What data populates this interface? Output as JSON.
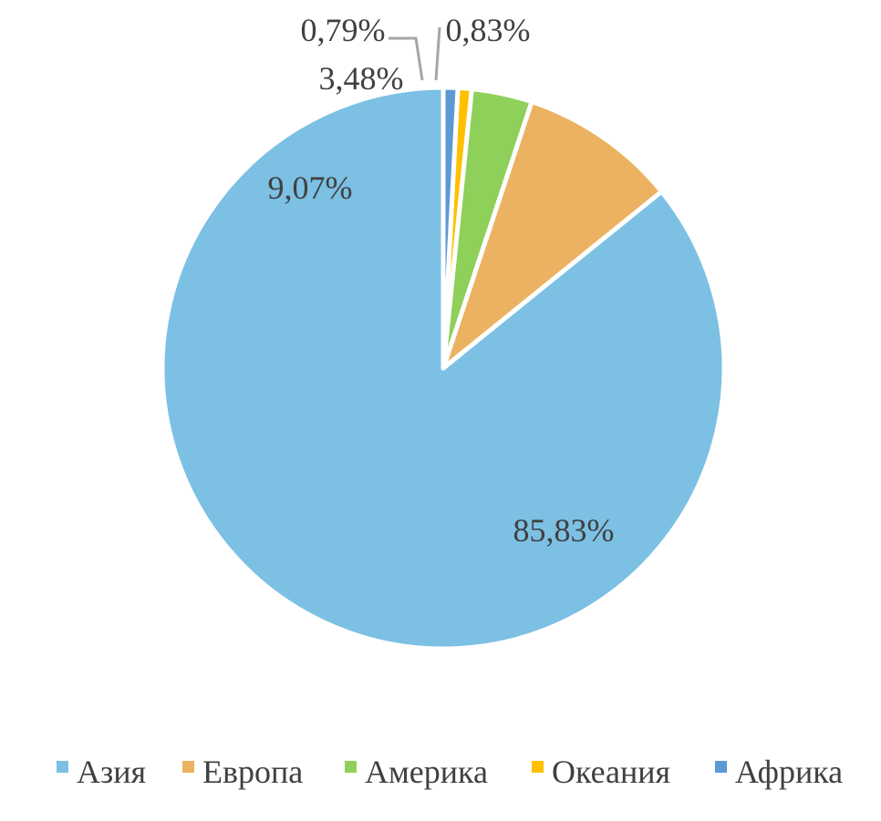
{
  "chart_data": {
    "type": "pie",
    "categories": [
      "Азия",
      "Европа",
      "Америка",
      "Океания",
      "Африка"
    ],
    "values": [
      85.83,
      9.07,
      3.48,
      0.79,
      0.83
    ],
    "data_labels": [
      "85,83%",
      "9,07%",
      "3,48%",
      "0,79%",
      "0,83%"
    ],
    "colors": [
      "#7cc0e4",
      "#ecb261",
      "#8ed05a",
      "#ffc000",
      "#5b9bd5"
    ],
    "start_angle_deg": 0,
    "direction": "counterclockwise",
    "legend_position": "bottom",
    "leader_line_color": "#a6a6a6"
  }
}
